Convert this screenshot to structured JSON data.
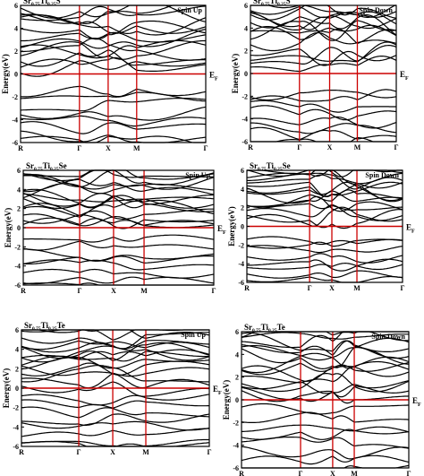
{
  "figure": {
    "colors": {
      "band": "#000000",
      "symmetry_line": "#cc0000",
      "fermi_line": "#cc0000",
      "background": "#ffffff"
    }
  },
  "chart_data": [
    {
      "type": "line",
      "compound": {
        "base": "Sr",
        "sub1": "0.75",
        "mid": "Ti",
        "sub2": "0.25",
        "anion": "S"
      },
      "spin": "Spin Up",
      "ylabel": "Energy(eV)",
      "ylim": [
        -6,
        6
      ],
      "yticks": [
        "6",
        "4",
        "2",
        "0",
        "-2",
        "-4",
        "-6"
      ],
      "kpath": [
        "R",
        "Γ",
        "X",
        "M",
        "Γ"
      ],
      "fermi_label": {
        "main": "E",
        "sub": "F"
      },
      "band_count_above": 14,
      "band_count_below": 8,
      "band_ranges_above_eV": [
        0.4,
        6
      ],
      "band_ranges_below_eV": [
        -6,
        -1.6
      ]
    },
    {
      "type": "line",
      "compound": {
        "base": "Sr",
        "sub1": "0.75",
        "mid": "Ti",
        "sub2": "0.25",
        "anion": "S"
      },
      "spin": "Spin Down",
      "ylabel": "Energy(eV)",
      "ylim": [
        -6,
        6
      ],
      "yticks": [
        "6",
        "4",
        "2",
        "0",
        "-2",
        "-4",
        "-6"
      ],
      "kpath": [
        "R",
        "Γ",
        "X",
        "M",
        "Γ"
      ],
      "fermi_label": {
        "main": "E",
        "sub": "F"
      },
      "band_count_above": 14,
      "band_count_below": 8,
      "band_ranges_above_eV": [
        0.9,
        6
      ],
      "band_ranges_below_eV": [
        -6,
        -1.6
      ]
    },
    {
      "type": "line",
      "compound": {
        "base": "Sr",
        "sub1": "0.75",
        "mid": "Ti",
        "sub2": "0.25",
        "anion": "Se"
      },
      "spin": "Spin Up",
      "ylabel": "Energy(eV)",
      "ylim": [
        -6,
        6
      ],
      "yticks": [
        "6",
        "4",
        "2",
        "0",
        "-2",
        "-4",
        "-6"
      ],
      "kpath": [
        "R",
        "Γ",
        "X",
        "M",
        "Γ"
      ],
      "fermi_label": {
        "main": "E",
        "sub": "F"
      },
      "band_count_above": 15,
      "band_count_below": 8,
      "band_ranges_above_eV": [
        0.3,
        6
      ],
      "band_ranges_below_eV": [
        -6,
        -1.3
      ]
    },
    {
      "type": "line",
      "compound": {
        "base": "Sr",
        "sub1": "0.75",
        "mid": "Ti",
        "sub2": "0.25",
        "anion": "Se"
      },
      "spin": "Spin Down",
      "ylabel": "Energy(eV)",
      "ylim": [
        -6,
        6
      ],
      "yticks": [
        "6",
        "4",
        "2",
        "0",
        "-2",
        "-4",
        "-6"
      ],
      "kpath": [
        "R",
        "Γ",
        "X",
        "M",
        "Γ"
      ],
      "fermi_label": {
        "main": "E",
        "sub": "F"
      },
      "band_count_above": 15,
      "band_count_below": 8,
      "band_ranges_above_eV": [
        0.8,
        6
      ],
      "band_ranges_below_eV": [
        -6,
        -1.3
      ]
    },
    {
      "type": "line",
      "compound": {
        "base": "Sr",
        "sub1": "0.75",
        "mid": "Ti",
        "sub2": "0.25",
        "anion": "Te"
      },
      "spin": "Spin Up",
      "ylabel": "Energy(eV)",
      "ylim": [
        -6,
        6
      ],
      "yticks": [
        "6",
        "4",
        "2",
        "0",
        "-2",
        "-4",
        "-6"
      ],
      "kpath": [
        "R",
        "Γ",
        "X",
        "M",
        "Γ"
      ],
      "fermi_label": {
        "main": "E",
        "sub": "F"
      },
      "band_count_above": 15,
      "band_count_below": 8,
      "band_ranges_above_eV": [
        0.2,
        6
      ],
      "band_ranges_below_eV": [
        -6,
        -1.0
      ]
    },
    {
      "type": "line",
      "compound": {
        "base": "Sr",
        "sub1": "0.75",
        "mid": "Ti",
        "sub2": "0.25",
        "anion": "Te"
      },
      "spin": "Spin Down",
      "ylabel": "Energy(eV)",
      "ylim": [
        -6,
        6
      ],
      "yticks": [
        "6",
        "4",
        "2",
        "0",
        "-2",
        "-4",
        "-6"
      ],
      "kpath": [
        "R",
        "Γ",
        "X",
        "M",
        "Γ"
      ],
      "fermi_label": {
        "main": "E",
        "sub": "F"
      },
      "band_count_above": 15,
      "band_count_below": 8,
      "band_ranges_above_eV": [
        0.7,
        6
      ],
      "band_ranges_below_eV": [
        -6,
        -1.0
      ]
    }
  ]
}
